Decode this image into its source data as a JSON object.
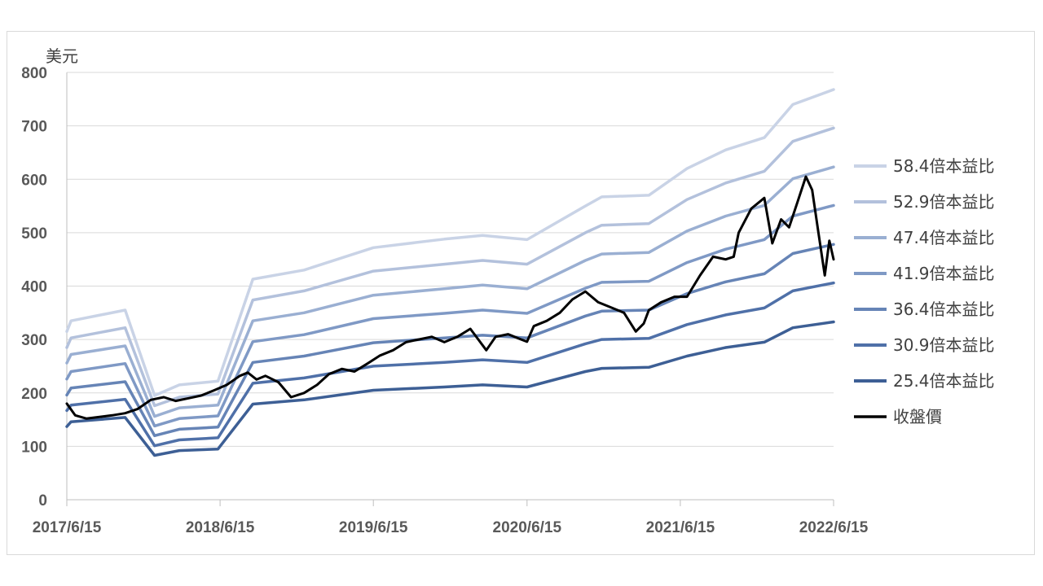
{
  "chart_data": {
    "type": "line",
    "ylabel": "美元",
    "ylim": [
      0,
      800
    ],
    "yticks": [
      "0",
      "100",
      "200",
      "300",
      "400",
      "500",
      "600",
      "700",
      "800"
    ],
    "xlim": [
      "2017-06-15",
      "2022-06-15"
    ],
    "xticks": [
      "2017/6/15",
      "2018/6/15",
      "2019/6/15",
      "2020/6/15",
      "2021/6/15",
      "2022/6/15"
    ],
    "grid": "horizontal",
    "legend": "right",
    "series": [
      {
        "name": "58.4倍本益比",
        "color": "#c9d3e6",
        "points": [
          [
            "2017-06-15",
            315
          ],
          [
            "2017-06-25",
            335
          ],
          [
            "2017-11-01",
            355
          ],
          [
            "2018-01-10",
            195
          ],
          [
            "2018-03-10",
            215
          ],
          [
            "2018-06-10",
            222
          ],
          [
            "2018-09-01",
            413
          ],
          [
            "2019-01-01",
            430
          ],
          [
            "2019-06-15",
            472
          ],
          [
            "2019-12-01",
            488
          ],
          [
            "2020-03-01",
            495
          ],
          [
            "2020-06-15",
            487
          ],
          [
            "2020-11-01",
            550
          ],
          [
            "2020-12-10",
            567
          ],
          [
            "2021-04-01",
            570
          ],
          [
            "2021-07-01",
            620
          ],
          [
            "2021-10-01",
            655
          ],
          [
            "2022-01-01",
            678
          ],
          [
            "2022-03-10",
            740
          ],
          [
            "2022-06-15",
            768
          ]
        ]
      },
      {
        "name": "52.9倍本益比",
        "color": "#b3c1dc",
        "points": [
          [
            "2017-06-15",
            285
          ],
          [
            "2017-06-25",
            303
          ],
          [
            "2017-11-01",
            322
          ],
          [
            "2018-01-10",
            176
          ],
          [
            "2018-03-10",
            192
          ],
          [
            "2018-06-10",
            198
          ],
          [
            "2018-09-01",
            374
          ],
          [
            "2019-01-01",
            391
          ],
          [
            "2019-06-15",
            428
          ],
          [
            "2019-12-01",
            441
          ],
          [
            "2020-03-01",
            448
          ],
          [
            "2020-06-15",
            441
          ],
          [
            "2020-11-01",
            500
          ],
          [
            "2020-12-10",
            514
          ],
          [
            "2021-04-01",
            517
          ],
          [
            "2021-07-01",
            562
          ],
          [
            "2021-10-01",
            593
          ],
          [
            "2022-01-01",
            615
          ],
          [
            "2022-03-10",
            671
          ],
          [
            "2022-06-15",
            696
          ]
        ]
      },
      {
        "name": "47.4倍本益比",
        "color": "#9aafd2",
        "points": [
          [
            "2017-06-15",
            256
          ],
          [
            "2017-06-25",
            272
          ],
          [
            "2017-11-01",
            288
          ],
          [
            "2018-01-10",
            156
          ],
          [
            "2018-03-10",
            172
          ],
          [
            "2018-06-10",
            177
          ],
          [
            "2018-09-01",
            335
          ],
          [
            "2019-01-01",
            350
          ],
          [
            "2019-06-15",
            383
          ],
          [
            "2019-12-01",
            395
          ],
          [
            "2020-03-01",
            402
          ],
          [
            "2020-06-15",
            395
          ],
          [
            "2020-11-01",
            448
          ],
          [
            "2020-12-10",
            460
          ],
          [
            "2021-04-01",
            463
          ],
          [
            "2021-07-01",
            503
          ],
          [
            "2021-10-01",
            531
          ],
          [
            "2022-01-01",
            551
          ],
          [
            "2022-03-10",
            601
          ],
          [
            "2022-06-15",
            623
          ]
        ]
      },
      {
        "name": "41.9倍本益比",
        "color": "#7f99c5",
        "points": [
          [
            "2017-06-15",
            226
          ],
          [
            "2017-06-25",
            240
          ],
          [
            "2017-11-01",
            255
          ],
          [
            "2018-01-10",
            138
          ],
          [
            "2018-03-10",
            152
          ],
          [
            "2018-06-10",
            157
          ],
          [
            "2018-09-01",
            296
          ],
          [
            "2019-01-01",
            309
          ],
          [
            "2019-06-15",
            339
          ],
          [
            "2019-12-01",
            349
          ],
          [
            "2020-03-01",
            355
          ],
          [
            "2020-06-15",
            349
          ],
          [
            "2020-11-01",
            396
          ],
          [
            "2020-12-10",
            407
          ],
          [
            "2021-04-01",
            409
          ],
          [
            "2021-07-01",
            444
          ],
          [
            "2021-10-01",
            469
          ],
          [
            "2022-01-01",
            487
          ],
          [
            "2022-03-10",
            531
          ],
          [
            "2022-06-15",
            551
          ]
        ]
      },
      {
        "name": "36.4倍本益比",
        "color": "#6684b6",
        "points": [
          [
            "2017-06-15",
            196
          ],
          [
            "2017-06-25",
            209
          ],
          [
            "2017-11-01",
            221
          ],
          [
            "2018-01-10",
            120
          ],
          [
            "2018-03-10",
            132
          ],
          [
            "2018-06-10",
            136
          ],
          [
            "2018-09-01",
            257
          ],
          [
            "2019-01-01",
            269
          ],
          [
            "2019-06-15",
            294
          ],
          [
            "2019-12-01",
            303
          ],
          [
            "2020-03-01",
            308
          ],
          [
            "2020-06-15",
            303
          ],
          [
            "2020-11-01",
            344
          ],
          [
            "2020-12-10",
            353
          ],
          [
            "2021-04-01",
            355
          ],
          [
            "2021-07-01",
            386
          ],
          [
            "2021-10-01",
            408
          ],
          [
            "2022-01-01",
            423
          ],
          [
            "2022-03-10",
            461
          ],
          [
            "2022-06-15",
            478
          ]
        ]
      },
      {
        "name": "30.9倍本益比",
        "color": "#4f70a8",
        "points": [
          [
            "2017-06-15",
            167
          ],
          [
            "2017-06-25",
            177
          ],
          [
            "2017-11-01",
            188
          ],
          [
            "2018-01-10",
            101
          ],
          [
            "2018-03-10",
            112
          ],
          [
            "2018-06-10",
            116
          ],
          [
            "2018-09-01",
            218
          ],
          [
            "2019-01-01",
            228
          ],
          [
            "2019-06-15",
            250
          ],
          [
            "2019-12-01",
            257
          ],
          [
            "2020-03-01",
            262
          ],
          [
            "2020-06-15",
            257
          ],
          [
            "2020-11-01",
            292
          ],
          [
            "2020-12-10",
            300
          ],
          [
            "2021-04-01",
            302
          ],
          [
            "2021-07-01",
            328
          ],
          [
            "2021-10-01",
            346
          ],
          [
            "2022-01-01",
            359
          ],
          [
            "2022-03-10",
            391
          ],
          [
            "2022-06-15",
            406
          ]
        ]
      },
      {
        "name": "25.4倍本益比",
        "color": "#3d5f95",
        "points": [
          [
            "2017-06-15",
            137
          ],
          [
            "2017-06-25",
            146
          ],
          [
            "2017-11-01",
            154
          ],
          [
            "2018-01-10",
            83
          ],
          [
            "2018-03-10",
            92
          ],
          [
            "2018-06-10",
            95
          ],
          [
            "2018-09-01",
            179
          ],
          [
            "2019-01-01",
            187
          ],
          [
            "2019-06-15",
            205
          ],
          [
            "2019-12-01",
            211
          ],
          [
            "2020-03-01",
            215
          ],
          [
            "2020-06-15",
            211
          ],
          [
            "2020-11-01",
            240
          ],
          [
            "2020-12-10",
            246
          ],
          [
            "2021-04-01",
            248
          ],
          [
            "2021-07-01",
            269
          ],
          [
            "2021-10-01",
            285
          ],
          [
            "2022-01-01",
            295
          ],
          [
            "2022-03-10",
            322
          ],
          [
            "2022-06-15",
            333
          ]
        ]
      },
      {
        "name": "收盤價",
        "color": "#000000",
        "points": [
          [
            "2017-06-15",
            180
          ],
          [
            "2017-07-05",
            158
          ],
          [
            "2017-08-01",
            152
          ],
          [
            "2017-09-01",
            155
          ],
          [
            "2017-10-01",
            158
          ],
          [
            "2017-11-01",
            162
          ],
          [
            "2017-12-01",
            170
          ],
          [
            "2018-01-01",
            187
          ],
          [
            "2018-02-01",
            192
          ],
          [
            "2018-03-01",
            185
          ],
          [
            "2018-04-01",
            190
          ],
          [
            "2018-05-01",
            195
          ],
          [
            "2018-06-01",
            205
          ],
          [
            "2018-07-01",
            215
          ],
          [
            "2018-08-01",
            232
          ],
          [
            "2018-08-20",
            238
          ],
          [
            "2018-09-10",
            225
          ],
          [
            "2018-10-01",
            232
          ],
          [
            "2018-11-01",
            220
          ],
          [
            "2018-12-01",
            192
          ],
          [
            "2019-01-01",
            200
          ],
          [
            "2019-02-01",
            215
          ],
          [
            "2019-03-01",
            235
          ],
          [
            "2019-04-01",
            245
          ],
          [
            "2019-05-01",
            240
          ],
          [
            "2019-06-01",
            255
          ],
          [
            "2019-07-01",
            270
          ],
          [
            "2019-08-01",
            280
          ],
          [
            "2019-09-01",
            295
          ],
          [
            "2019-10-01",
            300
          ],
          [
            "2019-11-01",
            305
          ],
          [
            "2019-12-01",
            295
          ],
          [
            "2020-01-01",
            305
          ],
          [
            "2020-02-01",
            320
          ],
          [
            "2020-02-20",
            300
          ],
          [
            "2020-03-10",
            280
          ],
          [
            "2020-04-01",
            305
          ],
          [
            "2020-05-01",
            310
          ],
          [
            "2020-06-01",
            300
          ],
          [
            "2020-06-15",
            296
          ],
          [
            "2020-07-01",
            325
          ],
          [
            "2020-08-01",
            335
          ],
          [
            "2020-09-01",
            350
          ],
          [
            "2020-10-01",
            375
          ],
          [
            "2020-11-01",
            390
          ],
          [
            "2020-12-01",
            370
          ],
          [
            "2021-01-01",
            360
          ],
          [
            "2021-02-01",
            350
          ],
          [
            "2021-03-01",
            315
          ],
          [
            "2021-03-20",
            330
          ],
          [
            "2021-04-01",
            355
          ],
          [
            "2021-05-01",
            370
          ],
          [
            "2021-06-01",
            380
          ],
          [
            "2021-07-01",
            380
          ],
          [
            "2021-08-01",
            420
          ],
          [
            "2021-09-01",
            455
          ],
          [
            "2021-10-01",
            450
          ],
          [
            "2021-10-20",
            455
          ],
          [
            "2021-11-01",
            500
          ],
          [
            "2021-12-01",
            545
          ],
          [
            "2022-01-01",
            565
          ],
          [
            "2022-01-20",
            480
          ],
          [
            "2022-02-10",
            525
          ],
          [
            "2022-03-01",
            510
          ],
          [
            "2022-03-20",
            555
          ],
          [
            "2022-04-10",
            605
          ],
          [
            "2022-04-25",
            580
          ],
          [
            "2022-05-10",
            500
          ],
          [
            "2022-05-25",
            420
          ],
          [
            "2022-06-05",
            485
          ],
          [
            "2022-06-15",
            450
          ]
        ]
      }
    ]
  }
}
